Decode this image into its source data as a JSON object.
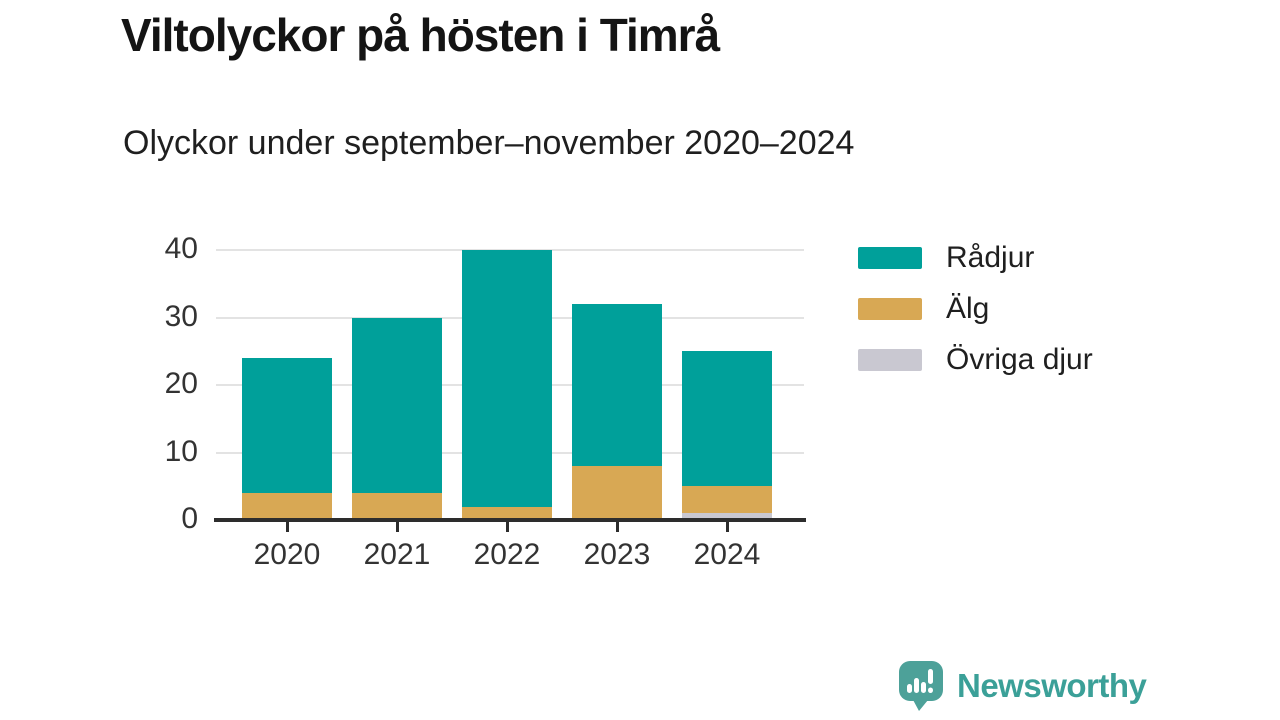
{
  "header": {
    "title": "Viltolyckor på hösten i Timrå",
    "subtitle": "Olyckor under september–november 2020–2024"
  },
  "chart_data": {
    "type": "bar",
    "stacked": true,
    "title": "Viltolyckor på hösten i Timrå",
    "subtitle": "Olyckor under september–november 2020–2024",
    "categories": [
      "2020",
      "2021",
      "2022",
      "2023",
      "2024"
    ],
    "series": [
      {
        "name": "Rådjur",
        "color": "#00a09a",
        "values": [
          20,
          26,
          38,
          24,
          20
        ]
      },
      {
        "name": "Älg",
        "color": "#d8a854",
        "values": [
          4,
          4,
          2,
          8,
          4
        ]
      },
      {
        "name": "Övriga djur",
        "color": "#c9c8d1",
        "values": [
          0,
          0,
          0,
          0,
          1
        ]
      }
    ],
    "stack_totals": [
      24,
      30,
      40,
      32,
      25
    ],
    "stack_order_bottom_to_top": [
      "Övriga djur",
      "Älg",
      "Rådjur"
    ],
    "xlabel": "",
    "ylabel": "",
    "ylim": [
      0,
      40
    ],
    "yticks": [
      0,
      10,
      20,
      30,
      40
    ],
    "grid": true,
    "legend_position": "right"
  },
  "legend": {
    "items": [
      {
        "label": "Rådjur",
        "color": "#00a09a"
      },
      {
        "label": "Älg",
        "color": "#d8a854"
      },
      {
        "label": "Övriga djur",
        "color": "#c9c8d1"
      }
    ]
  },
  "branding": {
    "logo_text": "Newsworthy",
    "logo_icon": "newsworthy-speech-bubble-bar-chart-icon",
    "logo_text_color": "#3ba098",
    "logo_icon_color": "#4da199"
  },
  "colors": {
    "background": "#ffffff",
    "axis": "#2d2d2d",
    "gridline": "#e3e3e3",
    "tick_label": "#333333",
    "title_text": "#141414"
  }
}
